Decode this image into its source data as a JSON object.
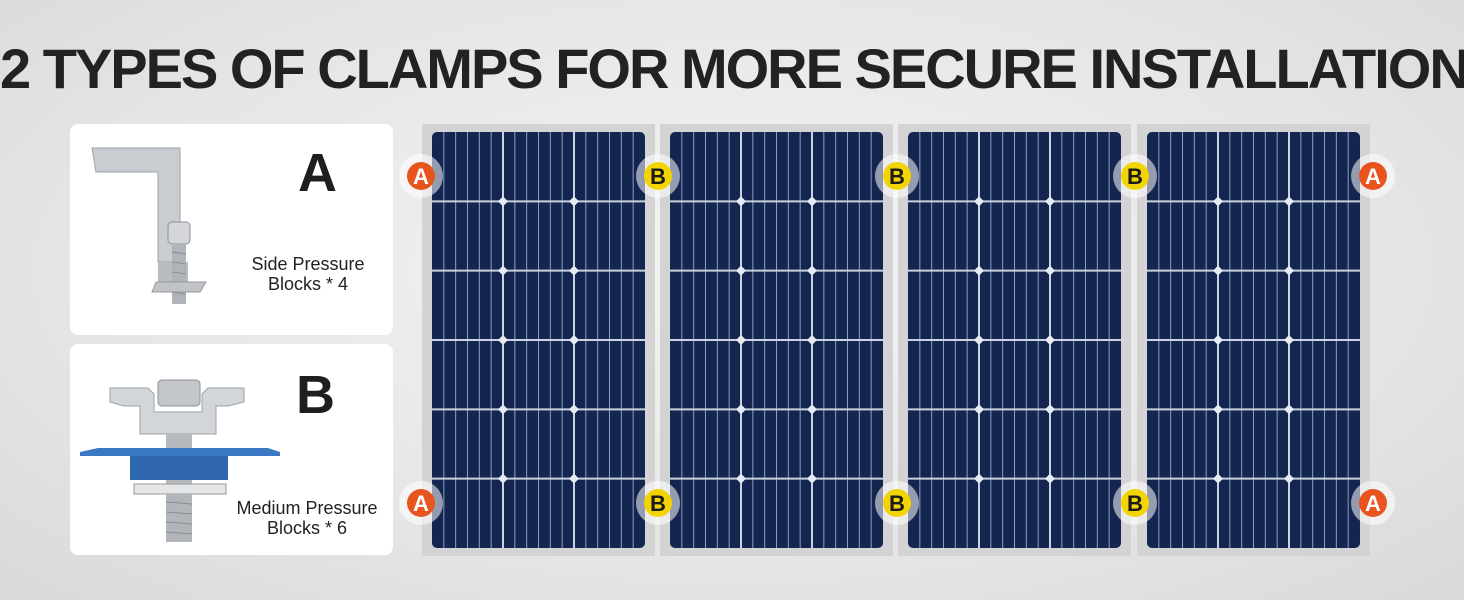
{
  "title": "2 TYPES OF CLAMPS FOR MORE SECURE INSTALLATION",
  "clamps": [
    {
      "letter": "A",
      "caption_line1": "Side Pressure",
      "caption_line2": "Blocks * 4",
      "badge_color": "#e8541e"
    },
    {
      "letter": "B",
      "caption_line1": "Medium Pressure",
      "caption_line2": "Blocks * 6",
      "badge_color": "#f2d500"
    }
  ],
  "panels": {
    "count": 4,
    "cell_color": "#14254f",
    "frame_color": "#d3d3d3"
  },
  "badges": {
    "top": [
      "A",
      "B",
      "B",
      "B",
      "A"
    ],
    "bottom": [
      "A",
      "B",
      "B",
      "B",
      "A"
    ]
  }
}
